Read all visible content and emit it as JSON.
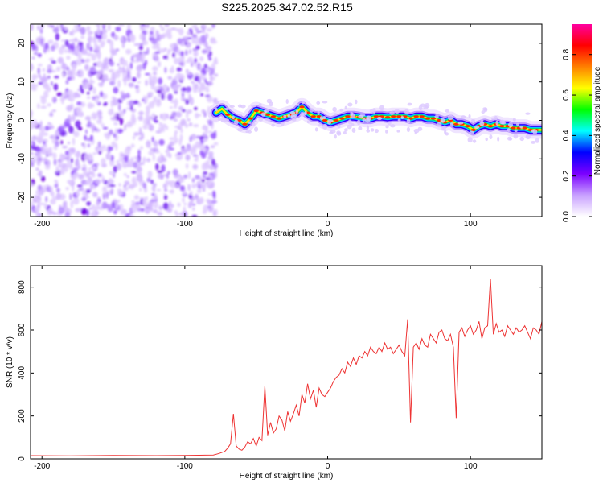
{
  "title": "S225.2025.347.02.52.R15",
  "chart_data": [
    {
      "type": "heatmap",
      "name": "spectrogram",
      "xlabel": "Height of straight line (km)",
      "ylabel": "Frequency (Hz)",
      "xlim": [
        -208,
        150
      ],
      "ylim": [
        -25,
        25
      ],
      "x_ticks": [
        -200,
        -100,
        0,
        100
      ],
      "y_ticks": [
        -20,
        -10,
        0,
        10,
        20
      ],
      "colorbar": {
        "label": "Normalized spectral amplitude",
        "range": [
          0,
          0.95
        ],
        "ticks": [
          0.0,
          0.2,
          0.4,
          0.6,
          0.8
        ],
        "colors": [
          "#ffffff",
          "#c8a0ff",
          "#7b00ff",
          "#0000ff",
          "#00ffff",
          "#00ff00",
          "#ffff00",
          "#ff8000",
          "#ff0000",
          "#ff00a0"
        ]
      },
      "noise_region_x": [
        -208,
        -78
      ],
      "signal_trace": {
        "x": [
          -78,
          -74,
          -70,
          -66,
          -62,
          -58,
          -54,
          -50,
          -46,
          -42,
          -38,
          -34,
          -30,
          -26,
          -22,
          -18,
          -14,
          -10,
          -6,
          -2,
          2,
          6,
          10,
          14,
          18,
          22,
          26,
          30,
          34,
          38,
          42,
          46,
          50,
          54,
          58,
          62,
          66,
          70,
          74,
          78,
          82,
          86,
          90,
          94,
          98,
          102,
          106,
          110,
          114,
          118,
          122,
          126,
          130,
          134,
          138,
          142,
          146,
          150
        ],
        "y": [
          2.0,
          3.0,
          1.5,
          0.5,
          0.0,
          -1.0,
          0.5,
          2.5,
          2.0,
          1.5,
          1.0,
          0.5,
          1.0,
          1.5,
          2.0,
          3.5,
          2.0,
          1.0,
          1.0,
          0.0,
          -0.5,
          0.0,
          0.5,
          1.0,
          1.0,
          0.8,
          0.5,
          0.5,
          1.0,
          1.0,
          0.8,
          1.0,
          1.0,
          1.0,
          0.5,
          1.0,
          1.0,
          0.5,
          0.5,
          0.0,
          -0.5,
          0.0,
          -1.0,
          -1.0,
          -1.5,
          -2.5,
          -1.5,
          -1.0,
          -1.5,
          -1.0,
          -1.5,
          -1.5,
          -2.0,
          -2.0,
          -2.0,
          -2.5,
          -2.5,
          -2.5
        ]
      }
    },
    {
      "type": "line",
      "name": "snr",
      "xlabel": "Height of straight line (km)",
      "ylabel": "SNR (10 * v/v)",
      "xlim": [
        -208,
        150
      ],
      "ylim": [
        0,
        900
      ],
      "x_ticks": [
        -200,
        -100,
        0,
        100
      ],
      "y_ticks": [
        0,
        200,
        400,
        600,
        800
      ],
      "color": "#ee3333",
      "x": [
        -208,
        -180,
        -150,
        -120,
        -100,
        -90,
        -80,
        -76,
        -72,
        -70,
        -68,
        -66,
        -64,
        -62,
        -60,
        -58,
        -56,
        -54,
        -52,
        -50,
        -48,
        -46,
        -44,
        -42,
        -40,
        -38,
        -36,
        -34,
        -32,
        -30,
        -28,
        -26,
        -24,
        -22,
        -20,
        -18,
        -16,
        -14,
        -12,
        -10,
        -8,
        -6,
        -4,
        -2,
        0,
        2,
        4,
        6,
        8,
        10,
        12,
        14,
        16,
        18,
        20,
        22,
        24,
        26,
        28,
        30,
        32,
        34,
        36,
        38,
        40,
        42,
        44,
        46,
        48,
        50,
        52,
        54,
        56,
        58,
        60,
        62,
        64,
        66,
        68,
        70,
        72,
        74,
        76,
        78,
        80,
        82,
        84,
        86,
        88,
        90,
        92,
        94,
        96,
        98,
        100,
        102,
        104,
        106,
        108,
        110,
        112,
        114,
        116,
        118,
        120,
        122,
        124,
        126,
        128,
        130,
        132,
        134,
        136,
        138,
        140,
        142,
        144,
        146,
        148,
        150
      ],
      "y": [
        15,
        14,
        16,
        15,
        16,
        17,
        18,
        25,
        35,
        50,
        70,
        210,
        60,
        45,
        40,
        55,
        80,
        70,
        95,
        60,
        100,
        85,
        340,
        110,
        170,
        120,
        140,
        200,
        180,
        130,
        220,
        175,
        210,
        250,
        200,
        300,
        260,
        350,
        280,
        320,
        240,
        330,
        300,
        290,
        310,
        330,
        360,
        380,
        390,
        420,
        400,
        450,
        430,
        470,
        440,
        480,
        470,
        500,
        480,
        520,
        500,
        490,
        520,
        500,
        540,
        510,
        520,
        490,
        510,
        530,
        500,
        480,
        650,
        170,
        520,
        540,
        510,
        560,
        530,
        520,
        580,
        560,
        540,
        590,
        600,
        560,
        550,
        580,
        520,
        190,
        590,
        610,
        570,
        600,
        620,
        580,
        600,
        640,
        560,
        610,
        620,
        840,
        580,
        630,
        590,
        600,
        570,
        620,
        600,
        580,
        610,
        590,
        600,
        620,
        590,
        560,
        610,
        600,
        580,
        640
      ]
    }
  ]
}
